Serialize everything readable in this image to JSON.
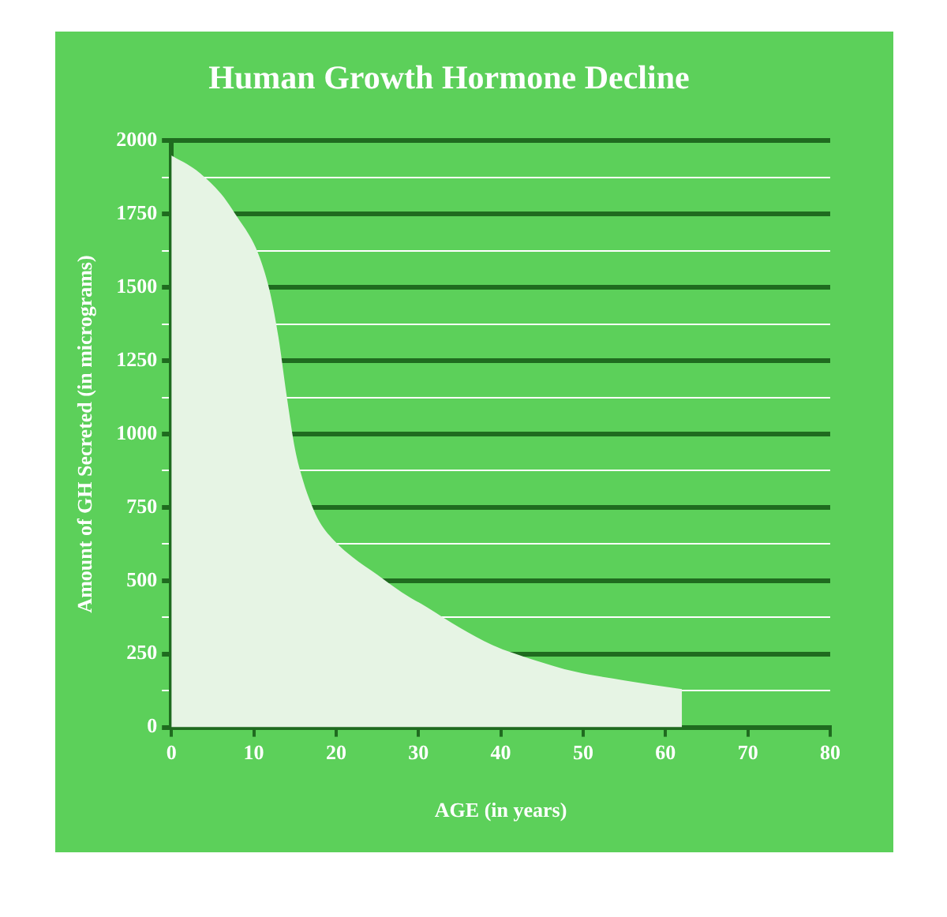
{
  "chart_data": {
    "type": "area",
    "title": "Human Growth Hormone Decline",
    "xlabel": "AGE (in years)",
    "ylabel": "Amount of GH Secreted (in micrograms)",
    "x": [
      0,
      3,
      6,
      8,
      10,
      11,
      12,
      13,
      14,
      15,
      16,
      17,
      18,
      20,
      22,
      25,
      28,
      31,
      35,
      39,
      44,
      49,
      55,
      62
    ],
    "series": [
      {
        "color": "#e6f4e4",
        "values": [
          1950,
          1900,
          1820,
          1740,
          1650,
          1580,
          1480,
          1330,
          1130,
          950,
          840,
          760,
          700,
          630,
          580,
          520,
          460,
          410,
          340,
          280,
          230,
          190,
          160,
          130
        ]
      }
    ],
    "xlim": [
      0,
      80
    ],
    "xticks": [
      0,
      10,
      20,
      30,
      40,
      50,
      60,
      70,
      80
    ],
    "ylim": [
      0,
      2000
    ],
    "yticks": [
      0,
      {
        "value": 125,
        "label": null
      },
      250,
      {
        "value": 375,
        "label": null
      },
      500,
      {
        "value": 625,
        "label": null
      },
      750,
      {
        "value": 875,
        "label": null
      },
      1000,
      {
        "value": 1125,
        "label": null
      },
      1250,
      {
        "value": 1375,
        "label": null
      },
      1500,
      {
        "value": 1625,
        "label": null
      },
      1750,
      {
        "value": 1875,
        "label": null
      },
      2000
    ],
    "grid": "y",
    "legend": false,
    "marker": "none"
  }
}
